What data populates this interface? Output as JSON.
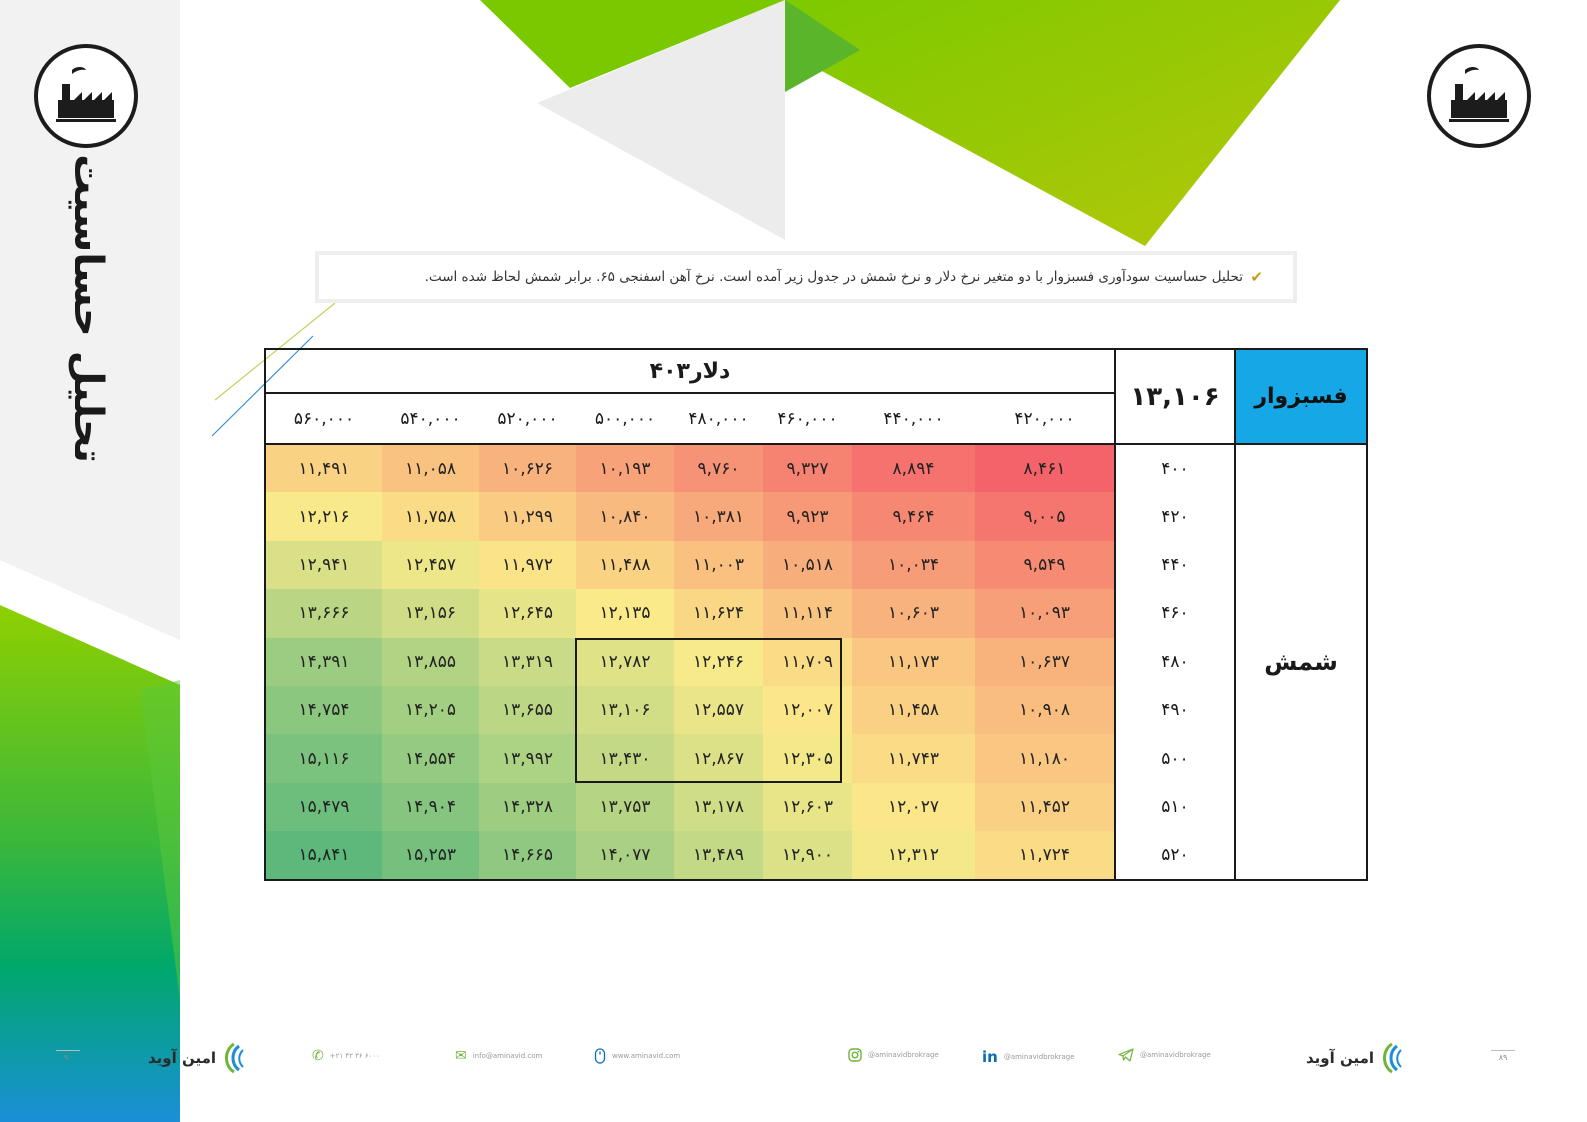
{
  "page_title": "تحلیل حساسیت",
  "intro_text": "تحلیل حساسیت سودآوری فسبزوار با دو متغیر نرخ دلار و نرخ شمش در جدول زیر آمده است. نرخ آهن اسفنجی ۶۵. برابر شمش لحاظ شده است.",
  "colors": {
    "company_header": "#16a8e6",
    "accent_green": "#6fb53a",
    "brand_blue": "#0a6db4",
    "heat_low": "#f4626a",
    "heat_mid": "#fbeb8a",
    "heat_high": "#5db87c"
  },
  "table": {
    "company": "فسبزوار",
    "base_value": "۱۳,۱۰۶",
    "dollar_header": "دلار۴۰۳",
    "row_header": "شمش",
    "dollar_columns": [
      "۵۶۰,۰۰۰",
      "۵۴۰,۰۰۰",
      "۵۲۰,۰۰۰",
      "۵۰۰,۰۰۰",
      "۴۸۰,۰۰۰",
      "۴۶۰,۰۰۰",
      "۴۴۰,۰۰۰",
      "۴۲۰,۰۰۰"
    ],
    "rows": [
      {
        "label": "۴۰۰",
        "values": [
          "۱۱,۴۹۱",
          "۱۱,۰۵۸",
          "۱۰,۶۲۶",
          "۱۰,۱۹۳",
          "۹,۷۶۰",
          "۹,۳۲۷",
          "۸,۸۹۴",
          "۸,۴۶۱"
        ]
      },
      {
        "label": "۴۲۰",
        "values": [
          "۱۲,۲۱۶",
          "۱۱,۷۵۸",
          "۱۱,۲۹۹",
          "۱۰,۸۴۰",
          "۱۰,۳۸۱",
          "۹,۹۲۳",
          "۹,۴۶۴",
          "۹,۰۰۵"
        ]
      },
      {
        "label": "۴۴۰",
        "values": [
          "۱۲,۹۴۱",
          "۱۲,۴۵۷",
          "۱۱,۹۷۲",
          "۱۱,۴۸۸",
          "۱۱,۰۰۳",
          "۱۰,۵۱۸",
          "۱۰,۰۳۴",
          "۹,۵۴۹"
        ]
      },
      {
        "label": "۴۶۰",
        "values": [
          "۱۳,۶۶۶",
          "۱۳,۱۵۶",
          "۱۲,۶۴۵",
          "۱۲,۱۳۵",
          "۱۱,۶۲۴",
          "۱۱,۱۱۴",
          "۱۰,۶۰۳",
          "۱۰,۰۹۳"
        ]
      },
      {
        "label": "۴۸۰",
        "values": [
          "۱۴,۳۹۱",
          "۱۳,۸۵۵",
          "۱۳,۳۱۹",
          "۱۲,۷۸۲",
          "۱۲,۲۴۶",
          "۱۱,۷۰۹",
          "۱۱,۱۷۳",
          "۱۰,۶۳۷"
        ]
      },
      {
        "label": "۴۹۰",
        "values": [
          "۱۴,۷۵۴",
          "۱۴,۲۰۵",
          "۱۳,۶۵۵",
          "۱۳,۱۰۶",
          "۱۲,۵۵۷",
          "۱۲,۰۰۷",
          "۱۱,۴۵۸",
          "۱۰,۹۰۸"
        ]
      },
      {
        "label": "۵۰۰",
        "values": [
          "۱۵,۱۱۶",
          "۱۴,۵۵۴",
          "۱۳,۹۹۲",
          "۱۳,۴۳۰",
          "۱۲,۸۶۷",
          "۱۲,۳۰۵",
          "۱۱,۷۴۳",
          "۱۱,۱۸۰"
        ]
      },
      {
        "label": "۵۱۰",
        "values": [
          "۱۵,۴۷۹",
          "۱۴,۹۰۴",
          "۱۴,۳۲۸",
          "۱۳,۷۵۳",
          "۱۳,۱۷۸",
          "۱۲,۶۰۳",
          "۱۲,۰۲۷",
          "۱۱,۴۵۲"
        ]
      },
      {
        "label": "۵۲۰",
        "values": [
          "۱۵,۸۴۱",
          "۱۵,۲۵۳",
          "۱۴,۶۶۵",
          "۱۴,۰۷۷",
          "۱۳,۴۸۹",
          "۱۲,۹۰۰",
          "۱۲,۳۱۲",
          "۱۱,۷۲۴"
        ]
      }
    ]
  },
  "footer": {
    "page_left": "۹۰",
    "page_right": "۸۹",
    "brand": "امین آوید",
    "phone": "+۲۱ ۴۲ ۳۶ ۶۰۰۰",
    "email": "info@aminavid.com",
    "website": "www.aminavid.com",
    "instagram": "@aminavidbrokrage",
    "linkedin": "@aminavidbrokrage",
    "telegram": "@aminavidbrokrage",
    "icons": [
      "phone-icon",
      "email-icon",
      "mouse-icon",
      "instagram-icon",
      "linkedin-icon",
      "telegram-icon"
    ]
  }
}
